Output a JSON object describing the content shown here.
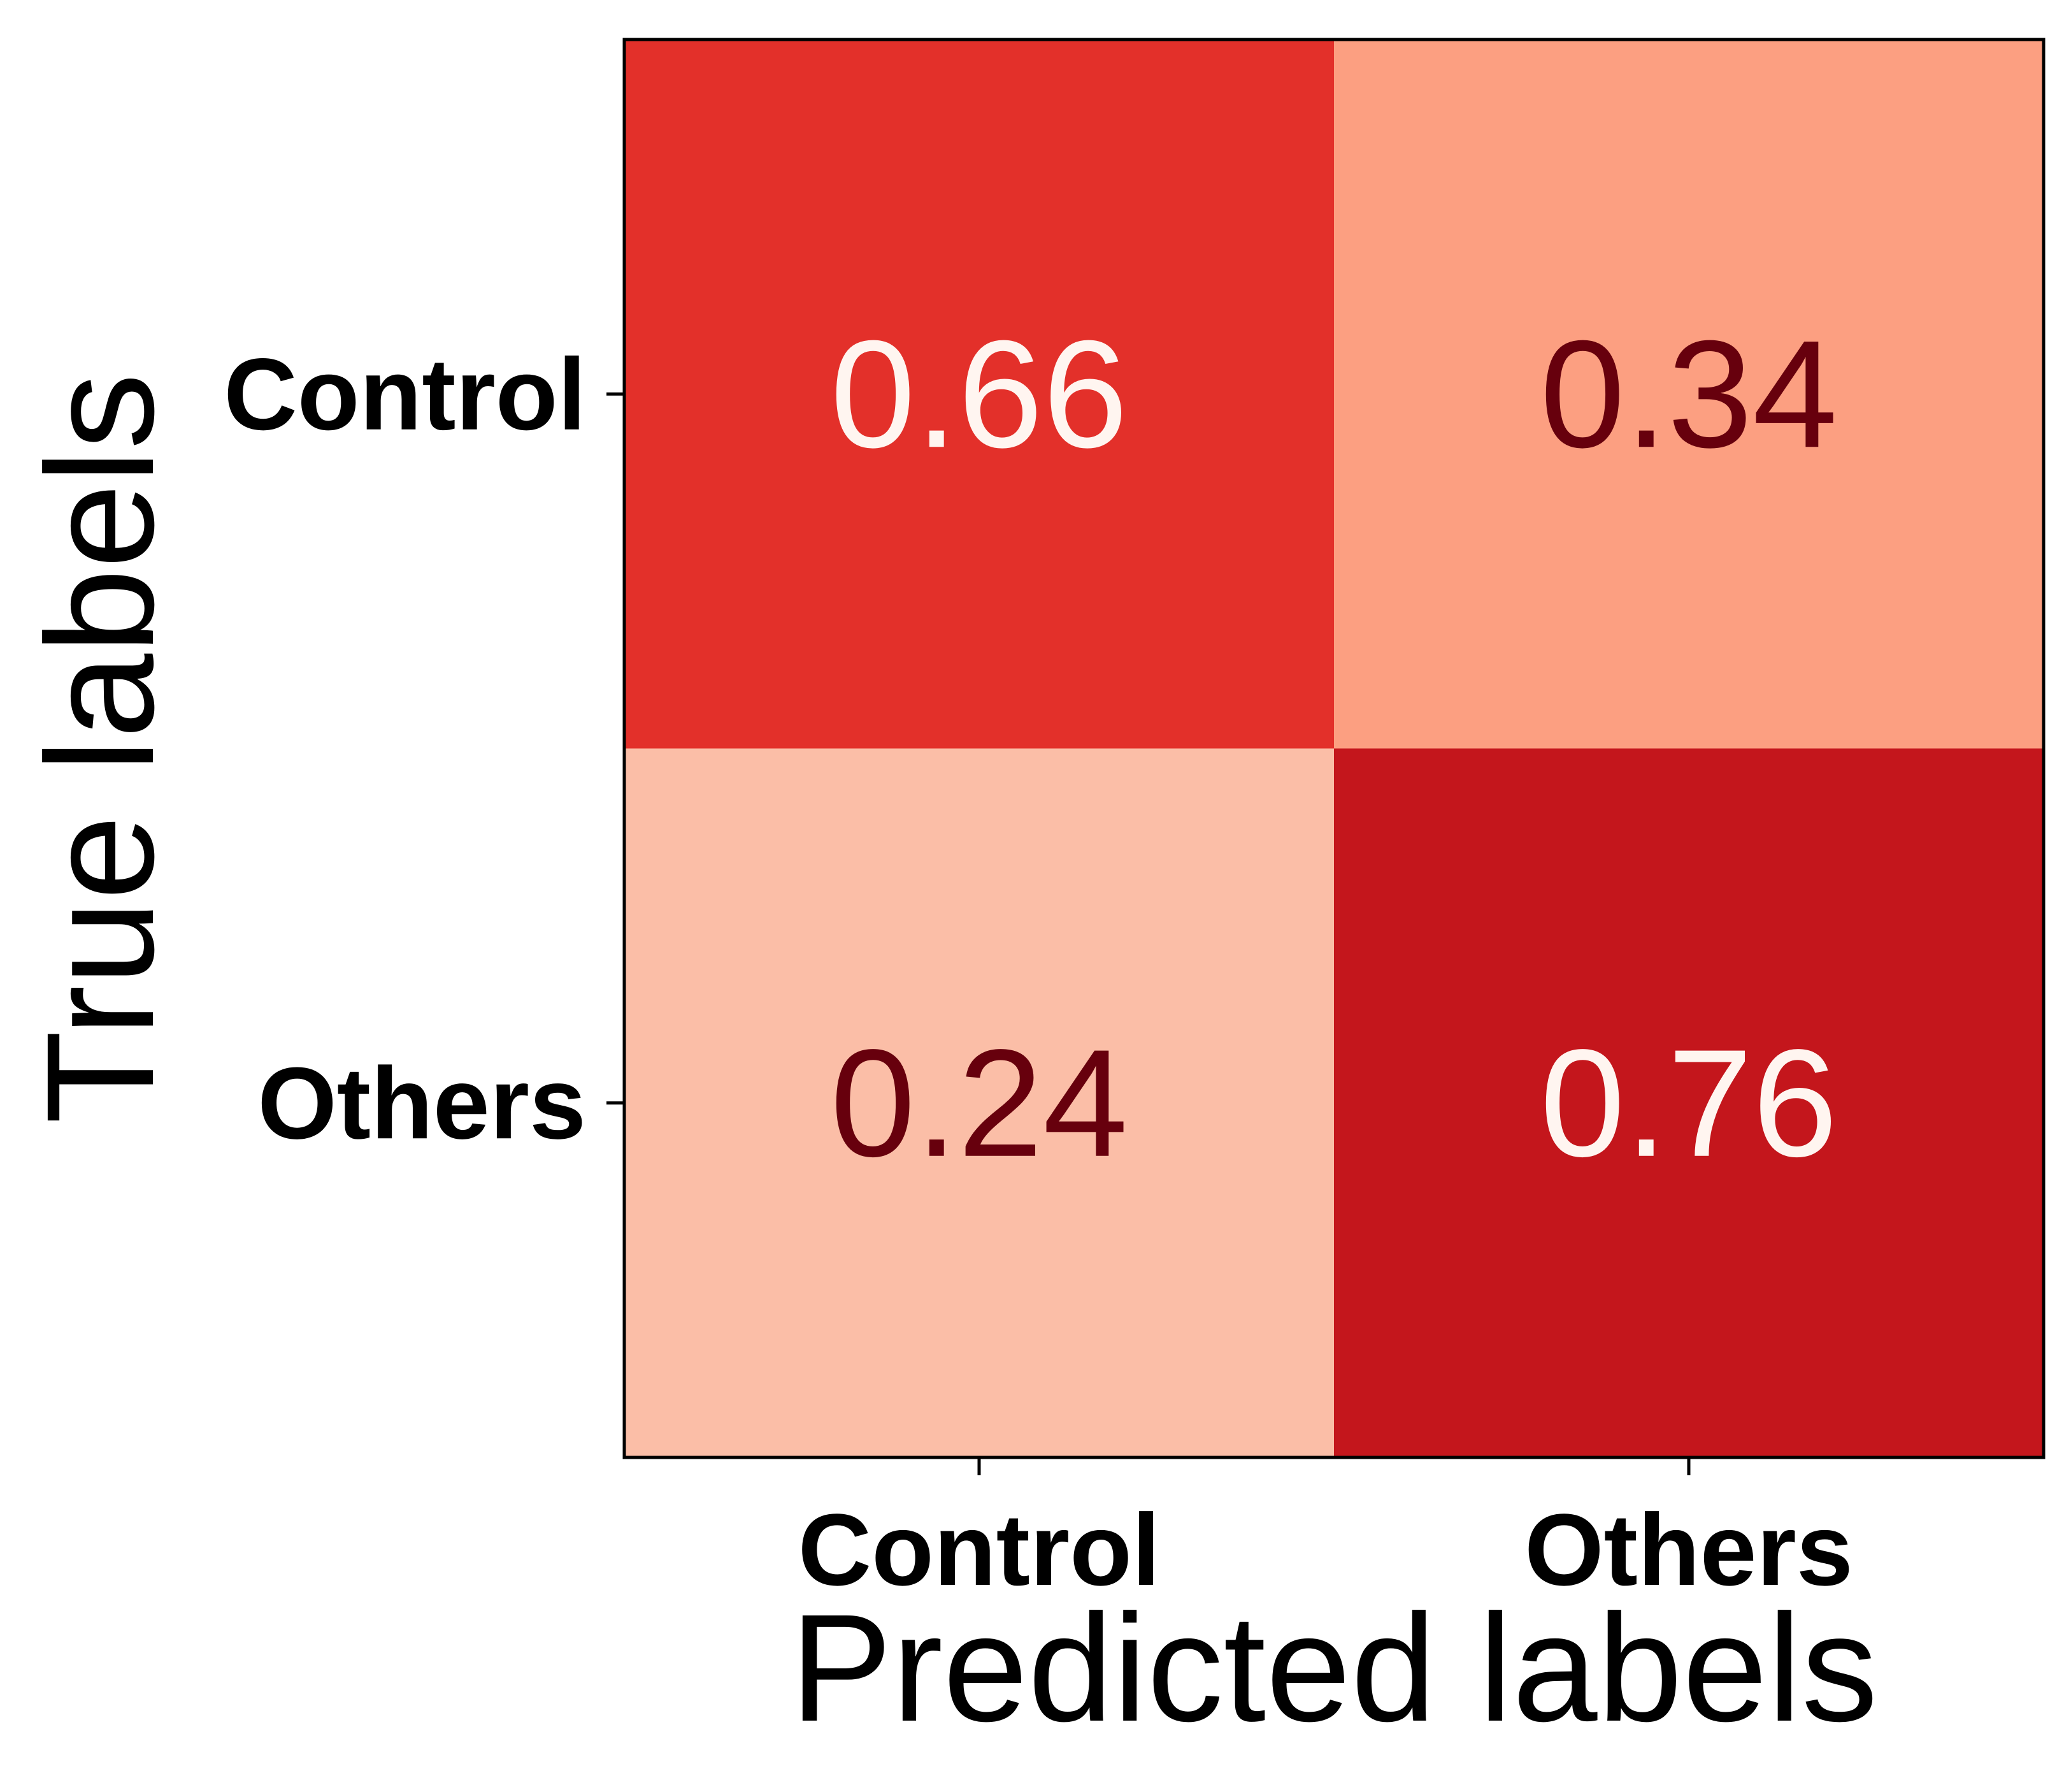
{
  "chart_data": {
    "type": "heatmap",
    "title": "",
    "xlabel": "Predicted labels",
    "ylabel": "True labels",
    "x_categories": [
      "Control",
      "Others"
    ],
    "y_categories": [
      "Control",
      "Others"
    ],
    "values": [
      [
        0.66,
        0.34
      ],
      [
        0.24,
        0.76
      ]
    ],
    "value_labels": [
      [
        "0.66",
        "0.34"
      ],
      [
        "0.24",
        "0.76"
      ]
    ],
    "cell_colors": [
      [
        "#e3302a",
        "#fc9f81"
      ],
      [
        "#fbbea7",
        "#c4161c"
      ]
    ],
    "label_colors": [
      [
        "#fff5f0",
        "#67000d"
      ],
      [
        "#67000d",
        "#fff5f0"
      ]
    ],
    "colormap": "Reds",
    "grid": false,
    "colorbar": false
  }
}
